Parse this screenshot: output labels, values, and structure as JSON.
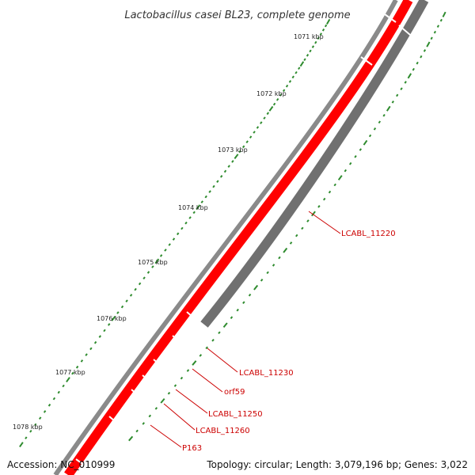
{
  "title": "Lactobacillus casei BL23, complete genome",
  "accession_label": "Accession: NC_010999",
  "summary_label": "Topology: circular; Length: 3,079,196 bp; Genes: 3,022",
  "ticks": [
    "1071 kbp",
    "1072 kbp",
    "1073 kbp",
    "1074 kbp",
    "1075 kbp",
    "1076 kbp",
    "1077 kbp",
    "1078 kbp"
  ],
  "gene_labels": [
    "LCABL_11220",
    "LCABL_11230",
    "orf59",
    "LCABL_11250",
    "LCABL_11260",
    "P163"
  ],
  "colors": {
    "forward_strand": "#ff0000",
    "reverse_strand": "#707070",
    "backbone": "#808080",
    "tick": "#2e8b2e",
    "label": "#cc0000"
  }
}
